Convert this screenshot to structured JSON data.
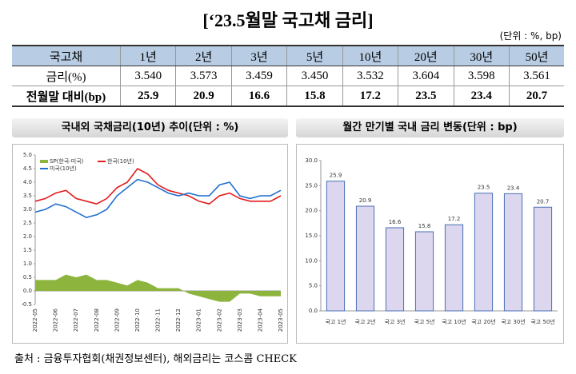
{
  "title": "[‘23.5월말 국고채 금리]",
  "unit": "(단위 : %, bp)",
  "table": {
    "header": [
      "국고채",
      "1년",
      "2년",
      "3년",
      "5년",
      "10년",
      "20년",
      "30년",
      "50년"
    ],
    "rows": [
      [
        "금리(%)",
        "3.540",
        "3.573",
        "3.459",
        "3.450",
        "3.532",
        "3.604",
        "3.598",
        "3.561"
      ],
      [
        "전월말 대비(bp)",
        "25.9",
        "20.9",
        "16.6",
        "15.8",
        "17.2",
        "23.5",
        "23.4",
        "20.7"
      ]
    ]
  },
  "chart_data": [
    {
      "type": "line",
      "title": "국내외 국채금리(10년) 추이(단위 : %)",
      "categories": [
        "2022-05",
        null,
        "2022-06",
        null,
        "2022-07",
        null,
        "2022-08",
        null,
        "2022-09",
        null,
        "2022-10",
        null,
        "2022-11",
        null,
        "2022-12",
        null,
        "2023-01",
        null,
        "2023-02",
        null,
        "2023-03",
        null,
        "2023-04",
        null,
        "2023-05"
      ],
      "series": [
        {
          "name": "SP(한국-미국)",
          "type": "area",
          "color": "#8db53e",
          "values": [
            0.4,
            0.4,
            0.4,
            0.6,
            0.5,
            0.6,
            0.4,
            0.4,
            0.3,
            0.2,
            0.4,
            0.3,
            0.1,
            0.1,
            0.1,
            -0.1,
            -0.2,
            -0.3,
            -0.4,
            -0.4,
            -0.1,
            -0.1,
            -0.2,
            -0.2,
            -0.2
          ]
        },
        {
          "name": "한국(10년)",
          "type": "line",
          "color": "#e41a1c",
          "values": [
            3.3,
            3.4,
            3.6,
            3.7,
            3.4,
            3.3,
            3.2,
            3.4,
            3.8,
            4.0,
            4.5,
            4.3,
            3.9,
            3.7,
            3.6,
            3.5,
            3.3,
            3.2,
            3.5,
            3.6,
            3.4,
            3.3,
            3.3,
            3.3,
            3.5
          ]
        },
        {
          "name": "미국(10년)",
          "type": "line",
          "color": "#1f6fd1",
          "values": [
            2.9,
            3.0,
            3.2,
            3.1,
            2.9,
            2.7,
            2.8,
            3.0,
            3.5,
            3.8,
            4.1,
            4.0,
            3.8,
            3.6,
            3.5,
            3.6,
            3.5,
            3.5,
            3.9,
            4.0,
            3.5,
            3.4,
            3.5,
            3.5,
            3.7
          ]
        }
      ],
      "ylim": [
        -0.5,
        5.0
      ],
      "yticks": [
        {
          "value": -0.5,
          "label": "-0.5"
        },
        {
          "value": 0,
          "label": "0.0"
        },
        {
          "value": 0.5,
          "label": "0.5"
        },
        {
          "value": 1,
          "label": "1.0"
        },
        {
          "value": 1.5,
          "label": "1.5"
        },
        {
          "value": 2,
          "label": "2.0"
        },
        {
          "value": 2.5,
          "label": "2.5"
        },
        {
          "value": 3,
          "label": "3.0"
        },
        {
          "value": 3.5,
          "label": "3.5"
        },
        {
          "value": 4,
          "label": "4.0"
        },
        {
          "value": 4.5,
          "label": "4.5"
        },
        {
          "value": 5,
          "label": "5.0"
        }
      ],
      "grid": false,
      "legend": "top-left"
    },
    {
      "type": "bar",
      "title": "월간 만기별 국내 금리 변동(단위 : bp)",
      "categories": [
        "국고 1년",
        "국고 2년",
        "국고 3년",
        "국고 5년",
        "국고 10년",
        "국고 20년",
        "국고 30년",
        "국고 50년"
      ],
      "values": [
        25.9,
        20.9,
        16.6,
        15.8,
        17.2,
        23.5,
        23.4,
        20.7
      ],
      "color": "#dcd6ee",
      "edge_color": "#4a6fb5",
      "ylim": [
        0,
        30
      ],
      "yticks": [
        {
          "value": 0,
          "label": "0.0"
        },
        {
          "value": 5,
          "label": "5.0"
        },
        {
          "value": 10,
          "label": "10.0"
        },
        {
          "value": 15,
          "label": "15.0"
        },
        {
          "value": 20,
          "label": "20.0"
        },
        {
          "value": 25,
          "label": "25.0"
        },
        {
          "value": 30,
          "label": "30.0"
        }
      ],
      "grid": false
    }
  ],
  "source": "출처 : 금융투자협회(채권정보센터), 해외금리는 코스콤 CHECK"
}
